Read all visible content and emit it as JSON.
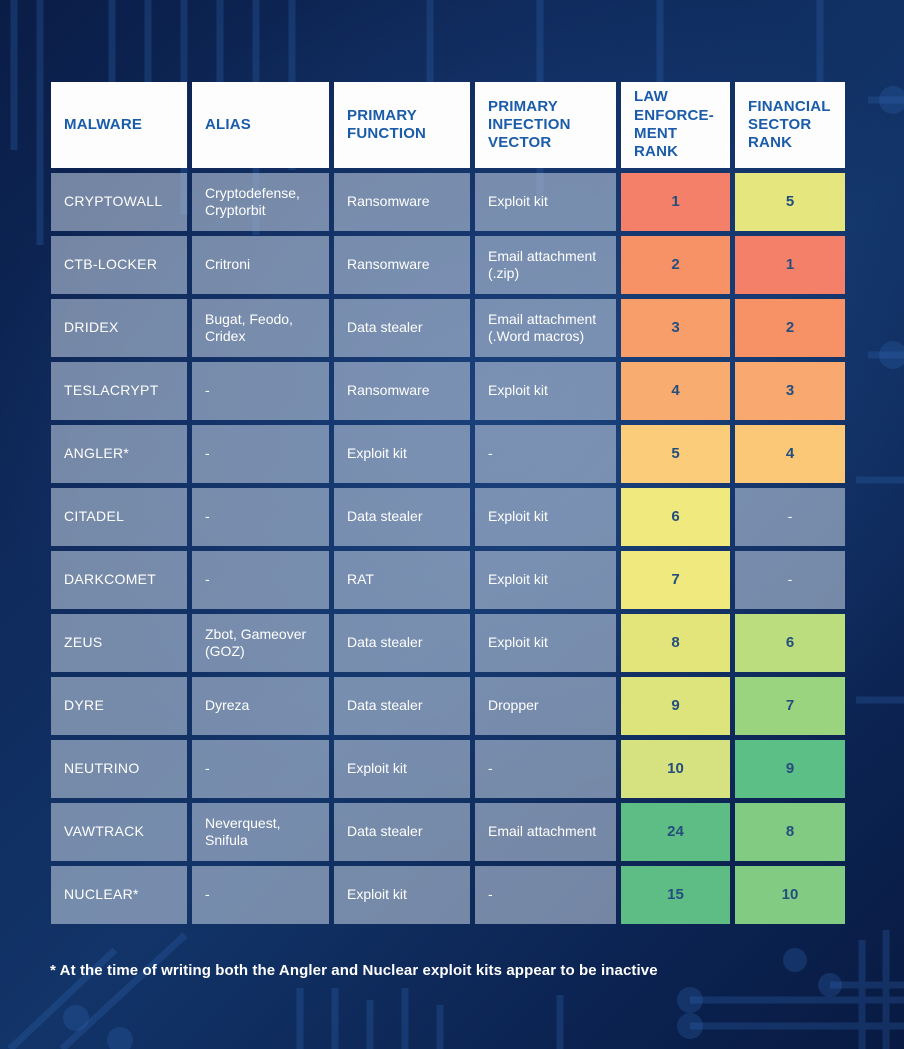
{
  "chart_data": {
    "type": "table",
    "columns": [
      {
        "label": "MALWARE"
      },
      {
        "label": "ALIAS"
      },
      {
        "label": "PRIMARY FUNCTION"
      },
      {
        "label": "PRIMARY INFECTION VECTOR"
      },
      {
        "label": "LAW ENFORCE-MENT RANK"
      },
      {
        "label": "FINANCIAL SECTOR RANK"
      }
    ],
    "rows": [
      {
        "malware": "CRYPTOWALL",
        "alias": "Cryptodefense, Cryptorbit",
        "primary_function": "Ransomware",
        "primary_infection_vector": "Exploit kit",
        "law_enforcement_rank": {
          "value": "1",
          "color": "#f5806a"
        },
        "financial_sector_rank": {
          "value": "5",
          "color": "#e6e67e"
        }
      },
      {
        "malware": "CTB-LOCKER",
        "alias": "Critroni",
        "primary_function": "Ransomware",
        "primary_infection_vector": "Email attachment (.zip)",
        "law_enforcement_rank": {
          "value": "2",
          "color": "#f79267"
        },
        "financial_sector_rank": {
          "value": "1",
          "color": "#f5806a"
        }
      },
      {
        "malware": "DRIDEX",
        "alias": "Bugat, Feodo, Cridex",
        "primary_function": "Data stealer",
        "primary_infection_vector": "Email attachment (.Word macros)",
        "law_enforcement_rank": {
          "value": "3",
          "color": "#f89e6b"
        },
        "financial_sector_rank": {
          "value": "2",
          "color": "#f79267"
        }
      },
      {
        "malware": "TESLACRYPT",
        "alias": "-",
        "primary_function": "Ransomware",
        "primary_infection_vector": "Exploit kit",
        "law_enforcement_rank": {
          "value": "4",
          "color": "#f9ac70"
        },
        "financial_sector_rank": {
          "value": "3",
          "color": "#f9a96f"
        }
      },
      {
        "malware": "ANGLER*",
        "alias": "-",
        "primary_function": "Exploit kit",
        "primary_infection_vector": "-",
        "law_enforcement_rank": {
          "value": "5",
          "color": "#fbcd7b"
        },
        "financial_sector_rank": {
          "value": "4",
          "color": "#fbc877"
        }
      },
      {
        "malware": "CITADEL",
        "alias": "-",
        "primary_function": "Data stealer",
        "primary_infection_vector": "Exploit kit",
        "law_enforcement_rank": {
          "value": "6",
          "color": "#efe97e"
        },
        "financial_sector_rank": {
          "value": "-",
          "color": null
        }
      },
      {
        "malware": "DARKCOMET",
        "alias": "-",
        "primary_function": "RAT",
        "primary_infection_vector": "Exploit kit",
        "law_enforcement_rank": {
          "value": "7",
          "color": "#efe97e"
        },
        "financial_sector_rank": {
          "value": "-",
          "color": null
        }
      },
      {
        "malware": "ZEUS",
        "alias": "Zbot, Gameover (GOZ)",
        "primary_function": "Data stealer",
        "primary_infection_vector": "Exploit kit",
        "law_enforcement_rank": {
          "value": "8",
          "color": "#e3e57b"
        },
        "financial_sector_rank": {
          "value": "6",
          "color": "#bcdd7e"
        }
      },
      {
        "malware": "DYRE",
        "alias": "Dyreza",
        "primary_function": "Data stealer",
        "primary_infection_vector": "Dropper",
        "law_enforcement_rank": {
          "value": "9",
          "color": "#dde47c"
        },
        "financial_sector_rank": {
          "value": "7",
          "color": "#9ad47f"
        }
      },
      {
        "malware": "NEUTRINO",
        "alias": "-",
        "primary_function": "Exploit kit",
        "primary_infection_vector": "-",
        "law_enforcement_rank": {
          "value": "10",
          "color": "#d5e27f"
        },
        "financial_sector_rank": {
          "value": "9",
          "color": "#5cbf85"
        }
      },
      {
        "malware": "VAWTRACK",
        "alias": "Neverquest, Snifula",
        "primary_function": "Data stealer",
        "primary_infection_vector": "Email attachment",
        "law_enforcement_rank": {
          "value": "24",
          "color": "#5dbd85"
        },
        "financial_sector_rank": {
          "value": "8",
          "color": "#82cb82"
        }
      },
      {
        "malware": "NUCLEAR*",
        "alias": "-",
        "primary_function": "Exploit kit",
        "primary_infection_vector": "-",
        "law_enforcement_rank": {
          "value": "15",
          "color": "#5dbd85"
        },
        "financial_sector_rank": {
          "value": "10",
          "color": "#82cb82"
        }
      }
    ]
  },
  "footnote": "* At the time of writing both the Angler and Nuclear exploit kits appear to be inactive",
  "colors": {
    "header_bg": "#fdfdfe",
    "header_text": "#1a5caa",
    "cell_text": "#ffffff",
    "rank_text": "#254e7e",
    "background_navy": "#0f2a5c",
    "circuit_trace": "#2e63ac"
  }
}
